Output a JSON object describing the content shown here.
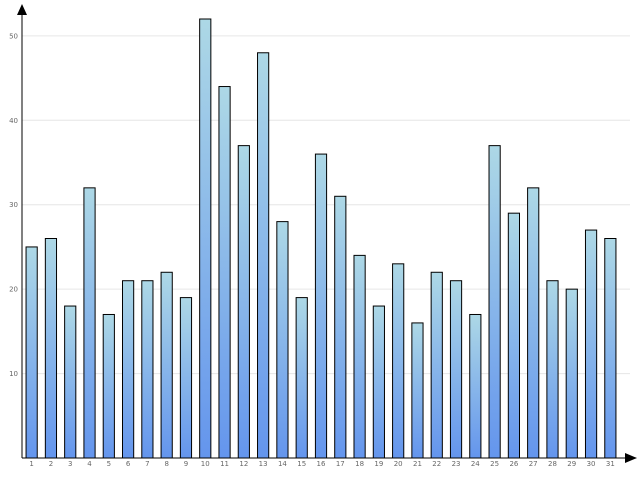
{
  "chart_data": {
    "type": "bar",
    "title": "",
    "xlabel": "",
    "ylabel": "",
    "categories": [
      "1",
      "2",
      "3",
      "4",
      "5",
      "6",
      "7",
      "8",
      "9",
      "10",
      "11",
      "12",
      "13",
      "14",
      "15",
      "16",
      "17",
      "18",
      "19",
      "20",
      "21",
      "22",
      "23",
      "24",
      "25",
      "26",
      "27",
      "28",
      "29",
      "30",
      "31"
    ],
    "values": [
      25,
      26,
      18,
      32,
      17,
      21,
      21,
      22,
      19,
      52,
      44,
      37,
      48,
      28,
      19,
      36,
      31,
      24,
      18,
      23,
      16,
      22,
      21,
      17,
      37,
      29,
      32,
      21,
      20,
      27,
      26
    ],
    "ylim": [
      0,
      52
    ],
    "yticks": [
      10,
      20,
      30,
      40,
      50
    ],
    "grid": true,
    "legend": "none",
    "colors": {
      "bar_top": "#add8e6",
      "bar_bottom": "#6495ed",
      "bar_outline": "#000000",
      "grid": "#e6e6e6",
      "tick_text": "#666666"
    }
  }
}
